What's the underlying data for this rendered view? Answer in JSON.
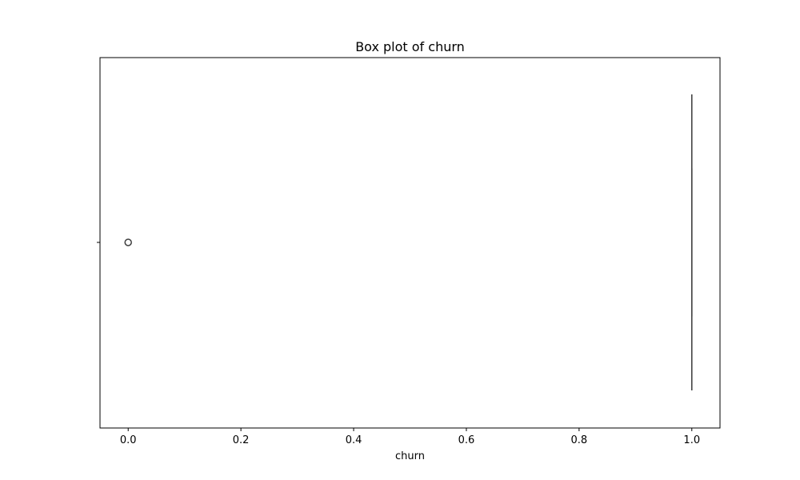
{
  "chart_data": {
    "type": "box",
    "title": "Box plot of churn",
    "xlabel": "churn",
    "ylabel": "",
    "xlim": [
      -0.05,
      1.05
    ],
    "xticks": [
      0.0,
      0.2,
      0.4,
      0.6,
      0.8,
      1.0
    ],
    "xtick_labels": [
      "0.0",
      "0.2",
      "0.4",
      "0.6",
      "0.8",
      "1.0"
    ],
    "orientation": "horizontal",
    "grid": false,
    "box": {
      "whisker_low": 1.0,
      "q1": 1.0,
      "median": 1.0,
      "q3": 1.0,
      "whisker_high": 1.0
    },
    "outliers": [
      0.0
    ],
    "colors": {
      "box_edge": "#3f3f3f",
      "outlier_edge": "#3f3f3f",
      "axes": "#000000"
    }
  }
}
